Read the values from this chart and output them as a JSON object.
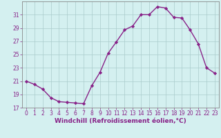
{
  "x": [
    0,
    1,
    2,
    3,
    4,
    5,
    6,
    7,
    8,
    9,
    10,
    11,
    12,
    13,
    14,
    15,
    16,
    17,
    18,
    19,
    20,
    21,
    22,
    23
  ],
  "y": [
    21.0,
    20.5,
    19.8,
    18.5,
    17.9,
    17.8,
    17.7,
    17.6,
    20.3,
    22.3,
    25.2,
    26.9,
    28.7,
    29.3,
    31.0,
    31.0,
    32.2,
    32.0,
    30.6,
    30.5,
    28.7,
    26.6,
    23.0,
    22.2
  ],
  "line_color": "#882288",
  "marker": "D",
  "markersize": 2.2,
  "linewidth": 1.0,
  "xlabel": "Windchill (Refroidissement éolien,°C)",
  "xlabel_fontsize": 6.5,
  "bg_color": "#d4f0f0",
  "grid_color": "#aacccc",
  "tick_color": "#882288",
  "label_color": "#882288",
  "ylim": [
    17,
    33
  ],
  "xlim": [
    -0.5,
    23.5
  ],
  "yticks": [
    17,
    19,
    21,
    23,
    25,
    27,
    29,
    31
  ],
  "xticks": [
    0,
    1,
    2,
    3,
    4,
    5,
    6,
    7,
    8,
    9,
    10,
    11,
    12,
    13,
    14,
    15,
    16,
    17,
    18,
    19,
    20,
    21,
    22,
    23
  ],
  "tick_fontsize": 5.5,
  "spine_color": "#888888"
}
